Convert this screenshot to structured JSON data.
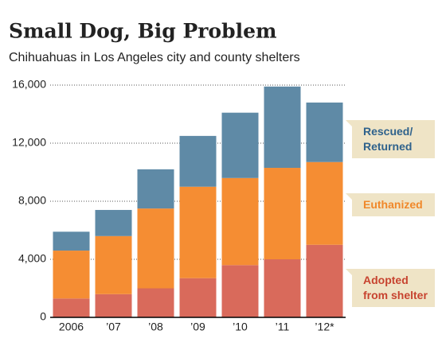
{
  "chart_data": {
    "type": "stacked_bar",
    "title": "Small Dog, Big Problem",
    "subtitle": "Chihuahuas in Los Angeles city and county shelters",
    "categories": [
      "2006",
      "’07",
      "’08",
      "’09",
      "’10",
      "’11",
      "’12*"
    ],
    "series": [
      {
        "name": "Adopted\nfrom shelter",
        "color": "#d96a5b",
        "values": [
          1300,
          1600,
          2000,
          2700,
          3600,
          4000,
          5000
        ]
      },
      {
        "name": "Euthanized",
        "color": "#f58d33",
        "values": [
          3300,
          4000,
          5500,
          6300,
          6000,
          6300,
          5700
        ]
      },
      {
        "name": "Rescued/\nReturned",
        "color": "#5f8aa6",
        "values": [
          1300,
          1800,
          2700,
          3500,
          4500,
          5600,
          4100
        ]
      }
    ],
    "ylim": [
      0,
      16000
    ],
    "yticks": [
      0,
      {
        "value": 4000,
        "label": "4,000"
      },
      {
        "value": 8000,
        "label": "8,000"
      },
      {
        "value": 12000,
        "label": "12,000"
      },
      {
        "value": 16000,
        "label": "16,000"
      }
    ],
    "grid": true
  }
}
